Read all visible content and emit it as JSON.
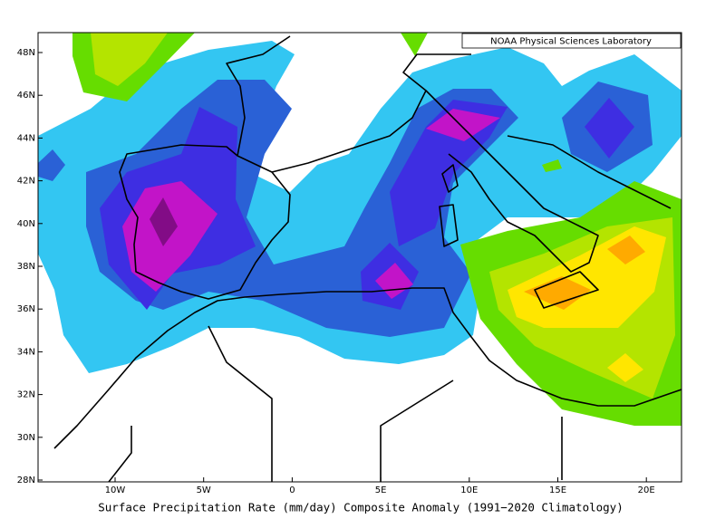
{
  "credit": "NOAA Physical Sciences Laboratory",
  "caption": "Surface Precipitation Rate (mm/day) Composite Anomaly (1991−2020 Climatology)",
  "lat_labels": [
    "48N",
    "46N",
    "44N",
    "42N",
    "40N",
    "38N",
    "36N",
    "34N",
    "32N",
    "30N",
    "28N"
  ],
  "lon_labels": [
    "10W",
    "5W",
    "0",
    "5E",
    "10E",
    "15E",
    "20E"
  ]
}
